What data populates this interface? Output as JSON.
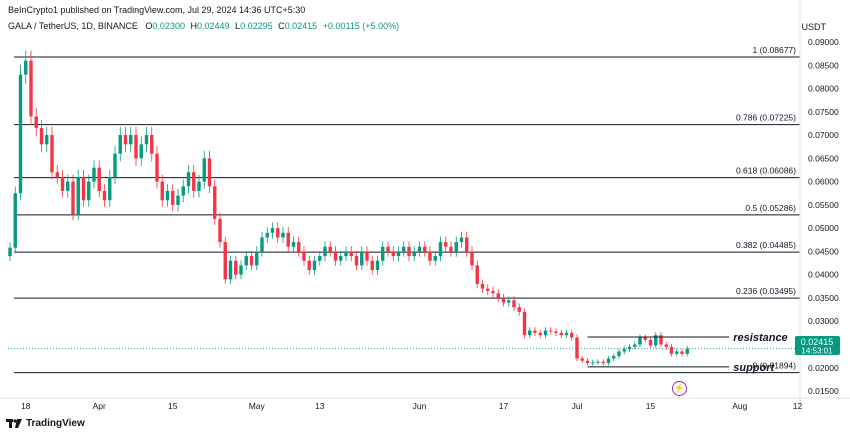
{
  "header": {
    "publisher": "BeInCrypto1 published on TradingView.com, Jul 29, 2024 14:36 UTC+5:30",
    "symbol": "GALA / TetherUS, 1D, BINANCE",
    "ohlc": {
      "o_label": "O",
      "o": "0.02300",
      "h_label": "H",
      "h": "0.02449",
      "l_label": "L",
      "l": "0.02295",
      "c_label": "C",
      "c": "0.02415",
      "change": "+0.00115 (+5.00%)"
    }
  },
  "axis_unit": "USDT",
  "brand": "TradingView",
  "icons": {
    "brand_logo": "tradingview-logo-icon",
    "flash": "lightning-icon"
  },
  "price_tag": {
    "price": "0.02415",
    "countdown": "14:53:01"
  },
  "colors": {
    "up": "#089981",
    "down": "#f23645",
    "line": "#131722",
    "grid": "#f0f3fa"
  },
  "chart_data": {
    "type": "candlestick",
    "y_scale": {
      "min": 0.0135,
      "max": 0.0915
    },
    "y_ticks": [
      "0.09000",
      "0.08500",
      "0.08000",
      "0.07500",
      "0.07000",
      "0.06500",
      "0.06000",
      "0.05500",
      "0.05000",
      "0.04500",
      "0.04000",
      "0.03500",
      "0.03000",
      "0.02500",
      "0.02000",
      "0.01500"
    ],
    "x_ticks": [
      {
        "label": "18",
        "day": 3
      },
      {
        "label": "Apr",
        "day": 17
      },
      {
        "label": "15",
        "day": 31
      },
      {
        "label": "May",
        "day": 47
      },
      {
        "label": "13",
        "day": 59
      },
      {
        "label": "Jun",
        "day": 78
      },
      {
        "label": "17",
        "day": 94
      },
      {
        "label": "Jul",
        "day": 108
      },
      {
        "label": "15",
        "day": 122
      },
      {
        "label": "Aug",
        "day": 139
      },
      {
        "label": "12",
        "day": 150
      }
    ],
    "fib_levels": [
      {
        "label": "1 (0.08677)",
        "value": 0.08677
      },
      {
        "label": "0.786 (0.07225)",
        "value": 0.07225
      },
      {
        "label": "0.618 (0.06086)",
        "value": 0.06086
      },
      {
        "label": "0.5 (0.05286)",
        "value": 0.05286
      },
      {
        "label": "0.382 (0.04485)",
        "value": 0.04485
      },
      {
        "label": "0.236 (0.03495)",
        "value": 0.03495
      },
      {
        "label": "0 (0.01894)",
        "value": 0.01894
      }
    ],
    "annotations": [
      {
        "label": "resistance",
        "value": 0.0266,
        "from_day": 110,
        "to_day": 137
      },
      {
        "label": "support",
        "value": 0.0202,
        "from_day": 110,
        "to_day": 137
      }
    ],
    "closes": [
      0.0458,
      0.0575,
      0.083,
      0.086,
      0.074,
      0.0715,
      0.068,
      0.07,
      0.062,
      0.061,
      0.058,
      0.06,
      0.053,
      0.061,
      0.056,
      0.06,
      0.063,
      0.058,
      0.056,
      0.061,
      0.066,
      0.07,
      0.068,
      0.07,
      0.065,
      0.068,
      0.07,
      0.066,
      0.06,
      0.056,
      0.058,
      0.055,
      0.057,
      0.059,
      0.062,
      0.058,
      0.06,
      0.065,
      0.059,
      0.052,
      0.047,
      0.039,
      0.043,
      0.04,
      0.042,
      0.044,
      0.042,
      0.045,
      0.048,
      0.049,
      0.05,
      0.048,
      0.049,
      0.046,
      0.047,
      0.045,
      0.043,
      0.041,
      0.043,
      0.044,
      0.046,
      0.045,
      0.043,
      0.044,
      0.045,
      0.044,
      0.042,
      0.045,
      0.043,
      0.041,
      0.043,
      0.046,
      0.045,
      0.044,
      0.045,
      0.046,
      0.044,
      0.045,
      0.046,
      0.045,
      0.043,
      0.044,
      0.047,
      0.046,
      0.045,
      0.047,
      0.048,
      0.045,
      0.042,
      0.038,
      0.037,
      0.0365,
      0.036,
      0.035,
      0.034,
      0.0345,
      0.033,
      0.032,
      0.027,
      0.028,
      0.0275,
      0.027,
      0.028,
      0.0278,
      0.0275,
      0.027,
      0.0275,
      0.0265,
      0.022,
      0.0215,
      0.021,
      0.0212,
      0.0213,
      0.021,
      0.022,
      0.0225,
      0.0235,
      0.024,
      0.0245,
      0.025,
      0.0265,
      0.026,
      0.0248,
      0.027,
      0.025,
      0.0245,
      0.023,
      0.0235,
      0.023,
      0.0241
    ]
  }
}
